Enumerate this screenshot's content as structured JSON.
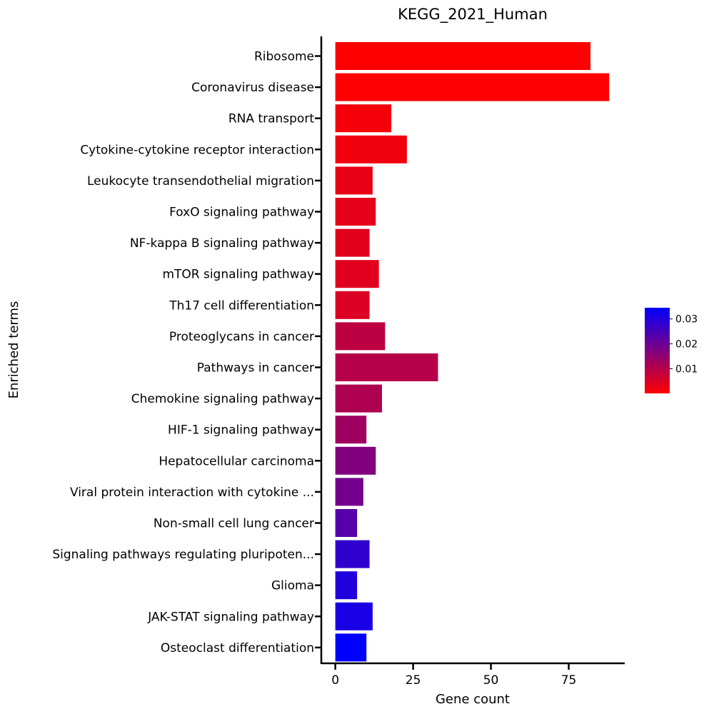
{
  "chart_data": {
    "type": "bar",
    "orientation": "horizontal",
    "title": "KEGG_2021_Human",
    "xlabel": "Gene count",
    "ylabel": "Enriched terms",
    "xlim": [
      -4.5,
      93
    ],
    "xticks": [
      0,
      25,
      50,
      75
    ],
    "xtick_labels": [
      "0",
      "25",
      "50",
      "75"
    ],
    "categories": [
      "Ribosome",
      "Coronavirus disease",
      "RNA transport",
      "Cytokine-cytokine receptor interaction",
      "Leukocyte transendothelial migration",
      "FoxO signaling pathway",
      "NF-kappa B signaling pathway",
      "mTOR signaling pathway",
      "Th17 cell differentiation",
      "Proteoglycans in cancer",
      "Pathways in cancer",
      "Chemokine signaling pathway",
      "HIF-1 signaling pathway",
      "Hepatocellular carcinoma",
      "Viral protein interaction with cytokine ...",
      "Non-small cell lung cancer",
      "Signaling pathways regulating pluripoten...",
      "Glioma",
      "JAK-STAT signaling pathway",
      "Osteoclast differentiation"
    ],
    "values": [
      82,
      88,
      18,
      23,
      12,
      13,
      11,
      14,
      11,
      16,
      33,
      15,
      10,
      13,
      9,
      7,
      11,
      7,
      12,
      10
    ],
    "color_values": [
      0.0001,
      0.0002,
      0.0015,
      0.002,
      0.003,
      0.0035,
      0.004,
      0.0042,
      0.005,
      0.009,
      0.01,
      0.011,
      0.013,
      0.017,
      0.019,
      0.023,
      0.028,
      0.03,
      0.031,
      0.0345
    ],
    "colorbar": {
      "range": [
        0.0001,
        0.0345
      ],
      "ticks": [
        0.01,
        0.02,
        0.03
      ],
      "tick_labels": [
        "0.01",
        "0.02",
        "0.03"
      ],
      "low_color": "#ff0000",
      "high_color": "#0000ff",
      "position": "right"
    },
    "grid": false,
    "legend": "none"
  }
}
